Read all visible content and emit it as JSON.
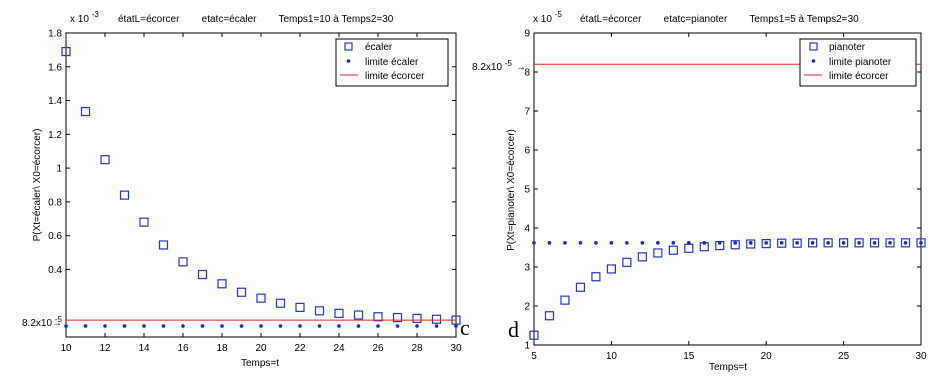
{
  "chart_data": [
    {
      "type": "scatter",
      "title": "étatL=écorcer        etatc=écaler        Temps1=10 à Temps2=30",
      "xlabel": "Temps=t",
      "ylabel": "P(Xt=écaler\\ X0=écorcer)",
      "y_exponent": "x 10",
      "y_exponent_power": "-3",
      "xlim": [
        10,
        30
      ],
      "ylim": [
        0,
        1.8
      ],
      "xticks": [
        "10",
        "12",
        "14",
        "16",
        "18",
        "20",
        "22",
        "24",
        "26",
        "28",
        "30"
      ],
      "yticks": [
        "0.4",
        "0.6",
        "0.8",
        "1",
        "1.2",
        "1.4",
        "1.6",
        "1.8"
      ],
      "reference_label": "8.2x10",
      "reference_label_power": "-5",
      "panel_letter": "c",
      "legend": [
        "écaler",
        "limite écaler",
        "limite écorcer"
      ],
      "legend_position": "top-right",
      "series": [
        {
          "name": "écaler",
          "marker": "square",
          "color": "#2233cc",
          "x": [
            10,
            11,
            12,
            13,
            14,
            15,
            16,
            17,
            18,
            19,
            20,
            21,
            22,
            23,
            24,
            25,
            26,
            27,
            28,
            29,
            30
          ],
          "y": [
            1.69,
            1.335,
            1.05,
            0.84,
            0.68,
            0.545,
            0.445,
            0.37,
            0.315,
            0.265,
            0.23,
            0.2,
            0.175,
            0.155,
            0.14,
            0.13,
            0.12,
            0.115,
            0.11,
            0.105,
            0.1
          ]
        },
        {
          "name": "limite écaler",
          "marker": "dot",
          "color": "#1a2ab0",
          "x": [
            10,
            11,
            12,
            13,
            14,
            15,
            16,
            17,
            18,
            19,
            20,
            21,
            22,
            23,
            24,
            25,
            26,
            27,
            28,
            29,
            30
          ],
          "y": [
            0.065,
            0.065,
            0.065,
            0.065,
            0.065,
            0.065,
            0.065,
            0.065,
            0.065,
            0.065,
            0.065,
            0.065,
            0.065,
            0.065,
            0.065,
            0.065,
            0.065,
            0.065,
            0.065,
            0.065,
            0.065
          ]
        },
        {
          "name": "limite écorcer",
          "marker": "line",
          "color": "#dd2222",
          "x": [
            10,
            30
          ],
          "y": [
            0.1,
            0.1
          ]
        }
      ]
    },
    {
      "type": "scatter",
      "title": "étatL=écorcer        etatc=pianoter        Temps1=5 à Temps2=30",
      "xlabel": "Temps=t",
      "ylabel": "P(Xt=pianoter\\ X0=écorcer)",
      "y_exponent": "x 10",
      "y_exponent_power": "-5",
      "xlim": [
        5,
        30
      ],
      "ylim": [
        1,
        9
      ],
      "xticks": [
        "5",
        "10",
        "15",
        "20",
        "25",
        "30"
      ],
      "yticks": [
        "1",
        "2",
        "3",
        "4",
        "5",
        "6",
        "7",
        "8",
        "9"
      ],
      "reference_label": "8.2x10",
      "reference_label_power": "-5",
      "panel_letter": "d",
      "legend": [
        "pianoter",
        "limite pianoter",
        "limite écorcer"
      ],
      "legend_position": "top-right",
      "series": [
        {
          "name": "pianoter",
          "marker": "square",
          "color": "#2233cc",
          "x": [
            5,
            6,
            7,
            8,
            9,
            10,
            11,
            12,
            13,
            14,
            15,
            16,
            17,
            18,
            19,
            20,
            21,
            22,
            23,
            24,
            25,
            26,
            27,
            28,
            29,
            30
          ],
          "y": [
            1.25,
            1.75,
            2.15,
            2.48,
            2.75,
            2.95,
            3.12,
            3.26,
            3.36,
            3.43,
            3.48,
            3.52,
            3.55,
            3.57,
            3.59,
            3.6,
            3.61,
            3.61,
            3.62,
            3.62,
            3.62,
            3.62,
            3.62,
            3.62,
            3.62,
            3.62
          ]
        },
        {
          "name": "limite pianoter",
          "marker": "dot",
          "color": "#1a2ab0",
          "x": [
            5,
            6,
            7,
            8,
            9,
            10,
            11,
            12,
            13,
            14,
            15,
            16,
            17,
            18,
            19,
            20,
            21,
            22,
            23,
            24,
            25,
            26,
            27,
            28,
            29,
            30
          ],
          "y": [
            3.62,
            3.62,
            3.62,
            3.62,
            3.62,
            3.62,
            3.62,
            3.62,
            3.62,
            3.62,
            3.62,
            3.62,
            3.62,
            3.62,
            3.62,
            3.62,
            3.62,
            3.62,
            3.62,
            3.62,
            3.62,
            3.62,
            3.62,
            3.62,
            3.62,
            3.62
          ]
        },
        {
          "name": "limite écorcer",
          "marker": "line",
          "color": "#dd2222",
          "x": [
            5,
            30
          ],
          "y": [
            8.2,
            8.2
          ]
        }
      ]
    }
  ]
}
